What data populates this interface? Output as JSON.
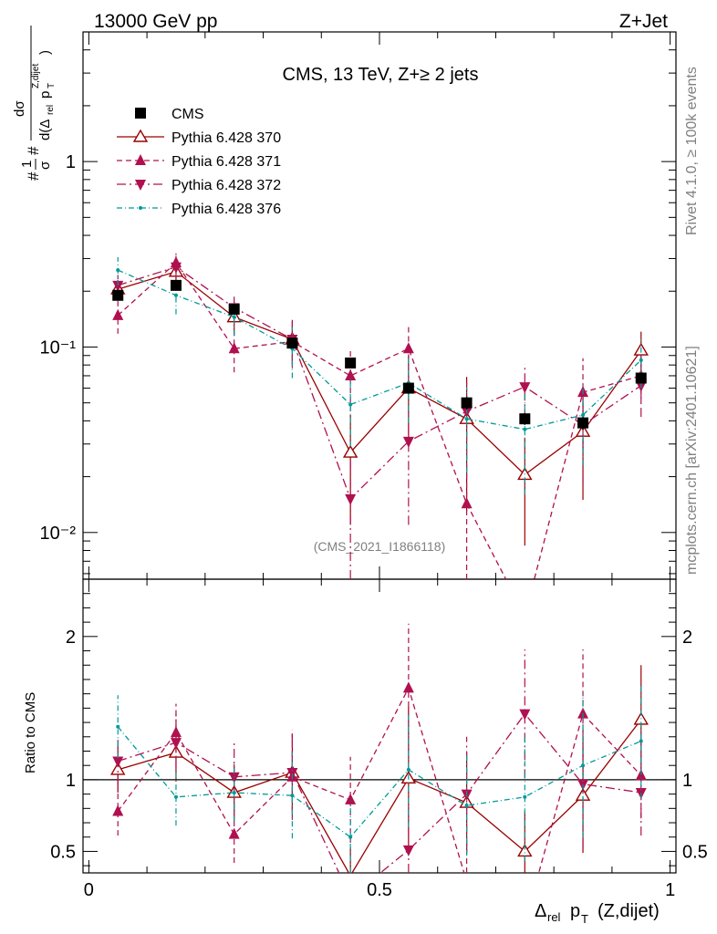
{
  "header": {
    "left": "13000 GeV pp",
    "right": "Z+Jet"
  },
  "side_texts": {
    "rivet": "Rivet 4.1.0, ≥ 100k events",
    "mcplots": "mcplots.cern.ch [arXiv:2401.10621]"
  },
  "chart_data": {
    "type": "line",
    "title": "CMS, 13 TeV, Z+≥ 2 jets",
    "analysis_tag": "(CMS_2021_I1866118)",
    "xlabel": "Δrel pT (Z,dijet)",
    "ylabel_main": "# 1/σ # dσ / d(Δrel pT Z,dijet)",
    "ylabel_ratio": "Ratio to CMS",
    "xlim": [
      -0.01,
      1.01
    ],
    "ylim_main": [
      0.0056,
      5.0
    ],
    "yscale_main": "log",
    "ylim_ratio": [
      0.35,
      2.4
    ],
    "legend_position": "top-left",
    "x_tick_labels": [
      "0",
      "0.5",
      "1"
    ],
    "y_tick_labels_main": [
      "1",
      "10⁻¹",
      "10⁻²"
    ],
    "y_tick_labels_ratio": [
      "0.5",
      "1",
      "2"
    ],
    "x": [
      0.05,
      0.15,
      0.25,
      0.35,
      0.45,
      0.55,
      0.65,
      0.75,
      0.85,
      0.95
    ],
    "data": {
      "name": "CMS",
      "values": [
        0.19,
        0.215,
        0.16,
        0.105,
        0.082,
        0.06,
        0.05,
        0.041,
        0.039,
        0.068
      ],
      "errors": [
        0.01,
        0.01,
        0.008,
        0.006,
        0.005,
        0.004,
        0.004,
        0.003,
        0.003,
        0.004
      ]
    },
    "series": [
      {
        "name": "Pythia 6.428 370",
        "color": "#990000",
        "marker": "triangle-up-open",
        "dash": "",
        "values": [
          0.205,
          0.255,
          0.145,
          0.11,
          0.027,
          0.06,
          0.041,
          0.0205,
          0.035,
          0.096
        ],
        "errors": [
          0.025,
          0.03,
          0.03,
          0.028,
          0.016,
          0.03,
          0.028,
          0.012,
          0.02,
          0.025
        ],
        "ratio": [
          1.07,
          1.19,
          0.91,
          1.05,
          0.33,
          1.01,
          0.84,
          0.5,
          0.89,
          1.42
        ],
        "ratio_errors": [
          0.16,
          0.2,
          0.2,
          0.27,
          0.2,
          0.5,
          0.35,
          0.28,
          0.4,
          0.38
        ]
      },
      {
        "name": "Pythia 6.428 371",
        "color": "#b0104f",
        "marker": "triangle-up",
        "dash": "6,4",
        "values": [
          0.148,
          0.285,
          0.098,
          0.107,
          0.07,
          0.098,
          0.0143,
          0.0,
          0.057,
          0.07
        ],
        "errors": [
          0.03,
          0.035,
          0.025,
          0.03,
          0.025,
          0.03,
          0.01,
          0.0,
          0.03,
          0.02
        ],
        "ratio": [
          0.78,
          1.33,
          0.62,
          1.02,
          0.86,
          1.64,
          0.29,
          0.0,
          1.46,
          1.03
        ],
        "ratio_errors": [
          0.17,
          0.2,
          0.2,
          0.3,
          0.3,
          0.45,
          0.3,
          0.0,
          0.45,
          0.3
        ]
      },
      {
        "name": "Pythia 6.428 372",
        "color": "#b0104f",
        "marker": "triangle-down",
        "dash": "10,4,2,4",
        "values": [
          0.215,
          0.27,
          0.163,
          0.11,
          0.0152,
          0.031,
          0.045,
          0.061,
          0.038,
          0.062
        ],
        "errors": [
          0.03,
          0.04,
          0.03,
          0.03,
          0.01,
          0.02,
          0.02,
          0.02,
          0.02,
          0.02
        ],
        "ratio": [
          1.13,
          1.26,
          1.02,
          1.05,
          0.18,
          0.51,
          0.9,
          1.46,
          0.97,
          0.91
        ],
        "ratio_errors": [
          0.17,
          0.2,
          0.25,
          0.3,
          0.15,
          0.3,
          0.4,
          0.45,
          0.45,
          0.3
        ]
      },
      {
        "name": "Pythia 6.428 376",
        "color": "#009999",
        "marker": "dot",
        "dash": "6,3,1,3",
        "values": [
          0.26,
          0.19,
          0.145,
          0.098,
          0.049,
          0.064,
          0.041,
          0.036,
          0.043,
          0.085
        ],
        "errors": [
          0.045,
          0.04,
          0.03,
          0.03,
          0.02,
          0.025,
          0.02,
          0.02,
          0.02,
          0.025
        ],
        "ratio": [
          1.37,
          0.88,
          0.91,
          0.89,
          0.6,
          1.07,
          0.82,
          0.88,
          1.1,
          1.27
        ],
        "ratio_errors": [
          0.22,
          0.2,
          0.2,
          0.3,
          0.25,
          0.4,
          0.35,
          0.45,
          0.5,
          0.4
        ]
      }
    ]
  }
}
